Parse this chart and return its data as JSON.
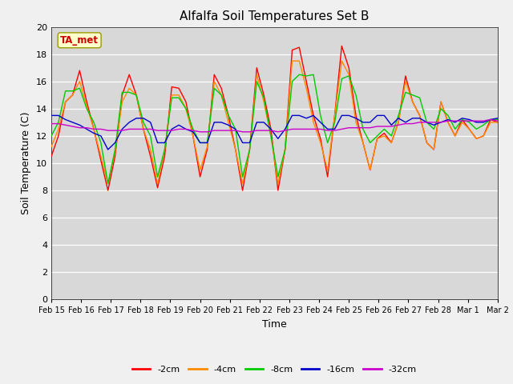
{
  "title": "Alfalfa Soil Temperatures Set B",
  "xlabel": "Time",
  "ylabel": "Soil Temperature (C)",
  "ylim": [
    0,
    20
  ],
  "yticks": [
    0,
    2,
    4,
    6,
    8,
    10,
    12,
    14,
    16,
    18,
    20
  ],
  "fig_bg_color": "#f0f0f0",
  "plot_bg_color": "#d8d8d8",
  "colors": {
    "-2cm": "#ff0000",
    "-4cm": "#ff8c00",
    "-8cm": "#00cc00",
    "-16cm": "#0000cc",
    "-32cm": "#cc00cc"
  },
  "annotation_text": "TA_met",
  "annotation_color": "#cc0000",
  "annotation_bg": "#ffffcc",
  "x_labels": [
    "Feb 15",
    "Feb 16",
    "Feb 17",
    "Feb 18",
    "Feb 19",
    "Feb 20",
    "Feb 21",
    "Feb 22",
    "Feb 23",
    "Feb 24",
    "Feb 25",
    "Feb 26",
    "Feb 27",
    "Feb 28",
    "Mar 1",
    "Mar 2"
  ],
  "t_2cm": [
    10.5,
    12.0,
    14.5,
    15.0,
    16.8,
    14.5,
    12.5,
    10.2,
    8.0,
    10.5,
    15.0,
    16.5,
    15.0,
    12.5,
    10.5,
    8.2,
    10.5,
    15.6,
    15.5,
    14.5,
    12.0,
    9.0,
    11.0,
    16.5,
    15.5,
    13.5,
    11.0,
    8.0,
    11.0,
    17.0,
    15.0,
    12.5,
    8.0,
    11.0,
    18.3,
    18.5,
    16.0,
    13.5,
    11.8,
    9.0,
    13.5,
    18.6,
    17.0,
    13.5,
    11.5,
    9.5,
    11.8,
    12.2,
    11.5,
    13.0,
    16.4,
    14.5,
    13.5,
    11.5,
    11.0,
    14.5,
    13.0,
    12.0,
    13.2,
    12.5,
    11.8,
    12.0,
    13.2,
    13.0
  ],
  "t_4cm": [
    11.2,
    12.5,
    14.5,
    15.0,
    16.0,
    14.2,
    12.5,
    10.5,
    8.5,
    10.8,
    14.5,
    15.5,
    15.0,
    12.5,
    11.0,
    8.5,
    11.0,
    15.0,
    15.0,
    14.0,
    12.0,
    9.5,
    11.2,
    16.0,
    15.0,
    13.0,
    11.0,
    8.5,
    11.0,
    16.5,
    14.5,
    12.0,
    8.5,
    11.0,
    17.5,
    17.5,
    15.5,
    13.0,
    11.5,
    9.5,
    13.5,
    17.5,
    16.5,
    13.0,
    11.5,
    9.5,
    11.8,
    12.0,
    11.5,
    13.0,
    16.0,
    14.5,
    13.5,
    11.5,
    11.0,
    14.5,
    13.0,
    12.0,
    13.0,
    12.5,
    11.8,
    12.0,
    13.0,
    13.0
  ],
  "t_8cm": [
    12.0,
    13.0,
    15.3,
    15.3,
    15.5,
    14.0,
    13.0,
    11.5,
    8.5,
    11.0,
    15.2,
    15.2,
    15.0,
    13.0,
    12.0,
    9.0,
    11.0,
    14.8,
    14.8,
    14.0,
    12.5,
    11.5,
    11.5,
    15.5,
    15.0,
    13.5,
    12.5,
    9.0,
    11.0,
    16.0,
    14.8,
    12.0,
    9.0,
    11.0,
    16.0,
    16.5,
    16.4,
    16.5,
    13.5,
    11.5,
    13.0,
    16.2,
    16.4,
    15.0,
    12.5,
    11.5,
    12.0,
    12.5,
    12.0,
    13.5,
    15.2,
    15.0,
    14.8,
    13.0,
    12.5,
    14.0,
    13.5,
    12.5,
    13.2,
    13.0,
    12.5,
    12.8,
    13.2,
    13.2
  ],
  "t_16cm": [
    13.5,
    13.5,
    13.2,
    13.0,
    12.8,
    12.5,
    12.2,
    12.0,
    11.0,
    11.5,
    12.5,
    13.0,
    13.3,
    13.3,
    13.0,
    11.5,
    11.5,
    12.5,
    12.8,
    12.5,
    12.3,
    11.5,
    11.5,
    13.0,
    13.0,
    12.8,
    12.5,
    11.5,
    11.5,
    13.0,
    13.0,
    12.5,
    11.8,
    12.5,
    13.5,
    13.5,
    13.3,
    13.5,
    13.0,
    12.5,
    12.5,
    13.5,
    13.5,
    13.3,
    13.0,
    13.0,
    13.5,
    13.5,
    12.8,
    13.3,
    13.0,
    13.3,
    13.3,
    13.0,
    12.8,
    13.0,
    13.2,
    13.0,
    13.3,
    13.2,
    13.0,
    13.0,
    13.2,
    13.3
  ],
  "t_32cm": [
    12.9,
    12.9,
    12.8,
    12.7,
    12.6,
    12.6,
    12.5,
    12.5,
    12.4,
    12.4,
    12.4,
    12.5,
    12.5,
    12.5,
    12.5,
    12.4,
    12.4,
    12.4,
    12.5,
    12.5,
    12.4,
    12.3,
    12.3,
    12.4,
    12.4,
    12.4,
    12.4,
    12.3,
    12.3,
    12.4,
    12.4,
    12.4,
    12.3,
    12.4,
    12.5,
    12.5,
    12.5,
    12.5,
    12.5,
    12.4,
    12.4,
    12.5,
    12.6,
    12.6,
    12.6,
    12.6,
    12.7,
    12.7,
    12.7,
    12.8,
    12.9,
    12.9,
    13.0,
    13.0,
    13.0,
    13.0,
    13.1,
    13.1,
    13.1,
    13.1,
    13.1,
    13.1,
    13.2,
    13.1
  ]
}
